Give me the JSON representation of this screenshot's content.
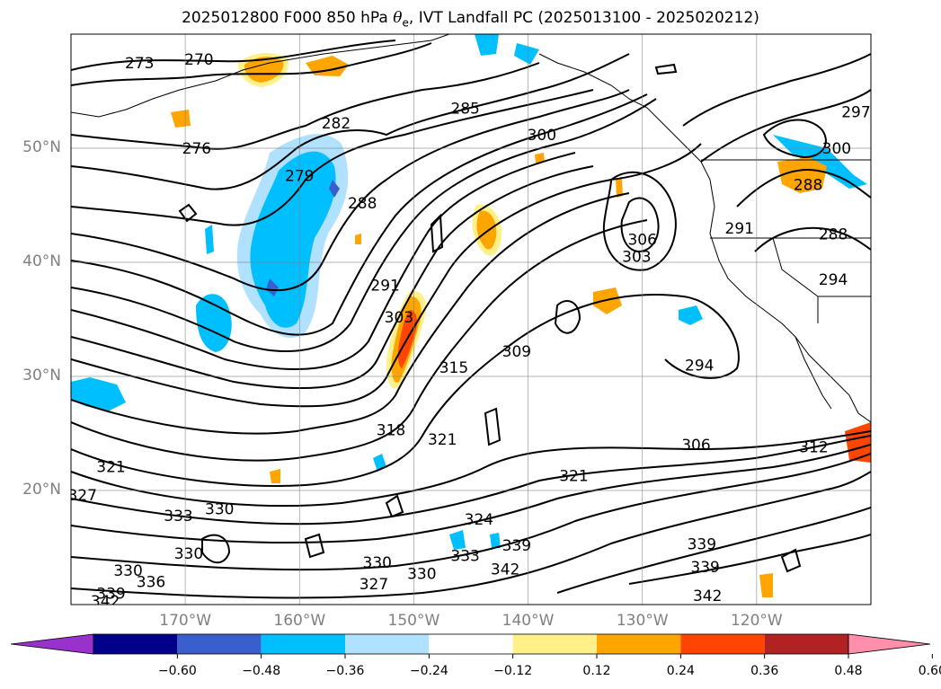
{
  "title": {
    "prefix": "2025012800 F000 850 hPa ",
    "symbol": "θ",
    "subscript": "e",
    "suffix": ", IVT Landfall PC (2025013100 - 2025020212)"
  },
  "map": {
    "lon_range": [
      -180,
      -110
    ],
    "lat_range": [
      10,
      60
    ],
    "lat_labels": [
      "50°N",
      "40°N",
      "30°N",
      "20°N"
    ],
    "lat_values": [
      50,
      40,
      30,
      20
    ],
    "lon_labels": [
      "170°W",
      "160°W",
      "150°W",
      "140°W",
      "130°W",
      "120°W"
    ],
    "lon_values": [
      -170,
      -160,
      -150,
      -140,
      -130,
      -120
    ],
    "gridlines": true
  },
  "contour_labels": [
    {
      "text": "270",
      "lon": -168.8,
      "lat": 57.8
    },
    {
      "text": "273",
      "lon": -174,
      "lat": 57.5
    },
    {
      "text": "276",
      "lon": -169,
      "lat": 50
    },
    {
      "text": "279",
      "lon": -160,
      "lat": 47.6
    },
    {
      "text": "282",
      "lon": -156.8,
      "lat": 52.2
    },
    {
      "text": "285",
      "lon": -145.5,
      "lat": 53.5
    },
    {
      "text": "288",
      "lon": -154.5,
      "lat": 45.2
    },
    {
      "text": "291",
      "lon": -152.5,
      "lat": 38
    },
    {
      "text": "300",
      "lon": -138.8,
      "lat": 51.2
    },
    {
      "text": "303",
      "lon": -151.3,
      "lat": 35.2
    },
    {
      "text": "306",
      "lon": -130,
      "lat": 42
    },
    {
      "text": "303",
      "lon": -130.5,
      "lat": 40.5
    },
    {
      "text": "315",
      "lon": -146.5,
      "lat": 30.8
    },
    {
      "text": "309",
      "lon": -141,
      "lat": 32.2
    },
    {
      "text": "294",
      "lon": -125,
      "lat": 31
    },
    {
      "text": "291",
      "lon": -121.5,
      "lat": 43
    },
    {
      "text": "288",
      "lon": -115.5,
      "lat": 46.8
    },
    {
      "text": "288",
      "lon": -113.3,
      "lat": 42.5
    },
    {
      "text": "294",
      "lon": -113.3,
      "lat": 38.5
    },
    {
      "text": "297",
      "lon": -111.3,
      "lat": 53.2
    },
    {
      "text": "300",
      "lon": -113,
      "lat": 50
    },
    {
      "text": "318",
      "lon": -152,
      "lat": 25.3
    },
    {
      "text": "321",
      "lon": -147.5,
      "lat": 24.5
    },
    {
      "text": "321",
      "lon": -176.5,
      "lat": 22.1
    },
    {
      "text": "327",
      "lon": -179,
      "lat": 19.6
    },
    {
      "text": "321",
      "lon": -136,
      "lat": 21.3
    },
    {
      "text": "306",
      "lon": -125.3,
      "lat": 24
    },
    {
      "text": "312",
      "lon": -115,
      "lat": 23.8
    },
    {
      "text": "333",
      "lon": -170.6,
      "lat": 17.8
    },
    {
      "text": "330",
      "lon": -167,
      "lat": 18.4
    },
    {
      "text": "324",
      "lon": -144.3,
      "lat": 17.5
    },
    {
      "text": "330",
      "lon": -169.7,
      "lat": 14.5
    },
    {
      "text": "330",
      "lon": -175,
      "lat": 13
    },
    {
      "text": "336",
      "lon": -173,
      "lat": 12
    },
    {
      "text": "339",
      "lon": -176.5,
      "lat": 11
    },
    {
      "text": "342",
      "lon": -177,
      "lat": 10.3
    },
    {
      "text": "330",
      "lon": -153.2,
      "lat": 13.7
    },
    {
      "text": "330",
      "lon": -149.3,
      "lat": 12.7
    },
    {
      "text": "327",
      "lon": -153.5,
      "lat": 11.8
    },
    {
      "text": "333",
      "lon": -145.5,
      "lat": 14.3
    },
    {
      "text": "339",
      "lon": -141,
      "lat": 15.2
    },
    {
      "text": "342",
      "lon": -142,
      "lat": 13.1
    },
    {
      "text": "339",
      "lon": -124.5,
      "lat": 13.3
    },
    {
      "text": "339",
      "lon": -124.8,
      "lat": 15.3
    },
    {
      "text": "342",
      "lon": -124.3,
      "lat": 10.8
    }
  ],
  "colorbar": {
    "levels": [
      -0.6,
      -0.48,
      -0.36,
      -0.24,
      -0.12,
      0.12,
      0.24,
      0.36,
      0.48,
      0.6
    ],
    "labels": [
      "−0.60",
      "−0.48",
      "−0.36",
      "−0.24",
      "−0.12",
      "0.12",
      "0.24",
      "0.36",
      "0.48",
      "0.60"
    ],
    "colors": [
      "#9932cc",
      "#00008b",
      "#3a5fcd",
      "#00bfff",
      "#b0e2ff",
      "#ffffff",
      "#fff08a",
      "#ffa500",
      "#ff4500",
      "#b22222",
      "#ff8fab"
    ],
    "extend": "both"
  }
}
